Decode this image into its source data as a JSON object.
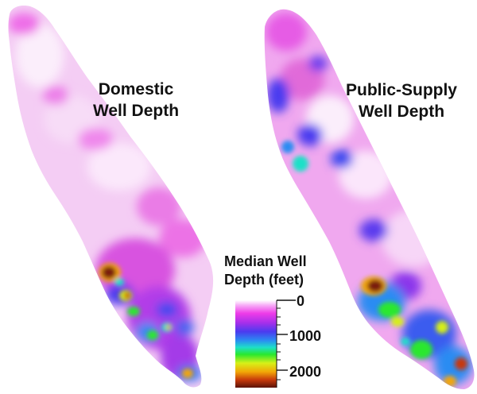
{
  "maps": [
    {
      "title_line1": "Domestic",
      "title_line2": "Well Depth"
    },
    {
      "title_line1": "Public-Supply",
      "title_line2": "Well Depth"
    }
  ],
  "legend": {
    "title_line1": "Median Well",
    "title_line2": "Depth (feet)",
    "ticks": [
      "0",
      "1000",
      "2000"
    ],
    "scale_min": 0,
    "scale_max": 2200,
    "colors": [
      "#ffffff",
      "#f7a8f7",
      "#ee3be8",
      "#a52fea",
      "#4a3bef",
      "#2b8cf2",
      "#1ee0c8",
      "#29e82f",
      "#d7f018",
      "#f2a607",
      "#c7390b",
      "#5a1207"
    ]
  }
}
